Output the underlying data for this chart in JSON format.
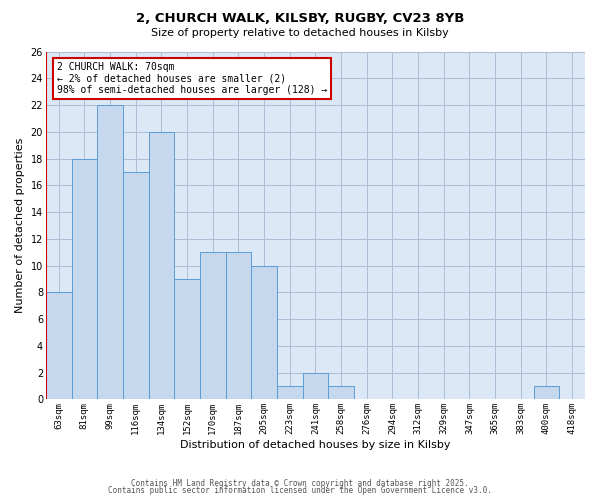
{
  "title": "2, CHURCH WALK, KILSBY, RUGBY, CV23 8YB",
  "subtitle": "Size of property relative to detached houses in Kilsby",
  "xlabel": "Distribution of detached houses by size in Kilsby",
  "ylabel": "Number of detached properties",
  "bin_labels": [
    "63sqm",
    "81sqm",
    "99sqm",
    "116sqm",
    "134sqm",
    "152sqm",
    "170sqm",
    "187sqm",
    "205sqm",
    "223sqm",
    "241sqm",
    "258sqm",
    "276sqm",
    "294sqm",
    "312sqm",
    "329sqm",
    "347sqm",
    "365sqm",
    "383sqm",
    "400sqm",
    "418sqm"
  ],
  "bar_values": [
    8,
    18,
    22,
    17,
    20,
    9,
    11,
    11,
    10,
    1,
    2,
    1,
    0,
    0,
    0,
    0,
    0,
    0,
    0,
    1,
    0
  ],
  "bar_color": "#c5d8ed",
  "bar_edge_color": "#5b9bd5",
  "plot_bg_color": "#dce8f5",
  "ylim": [
    0,
    26
  ],
  "yticks": [
    0,
    2,
    4,
    6,
    8,
    10,
    12,
    14,
    16,
    18,
    20,
    22,
    24,
    26
  ],
  "marker_label": "2 CHURCH WALK: 70sqm",
  "annotation_line1": "← 2% of detached houses are smaller (2)",
  "annotation_line2": "98% of semi-detached houses are larger (128) →",
  "marker_color": "#cc0000",
  "footer1": "Contains HM Land Registry data © Crown copyright and database right 2025.",
  "footer2": "Contains public sector information licensed under the Open Government Licence v3.0.",
  "background_color": "#ffffff",
  "grid_color": "#aabdd4",
  "title_fontsize": 9.5,
  "subtitle_fontsize": 8,
  "axis_label_fontsize": 8,
  "tick_fontsize": 6.5,
  "annotation_fontsize": 7,
  "footer_fontsize": 5.5
}
